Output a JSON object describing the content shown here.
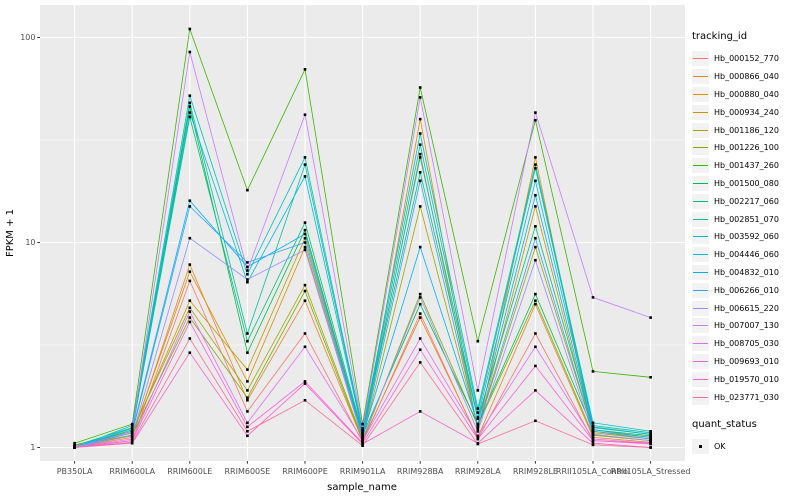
{
  "chart_data": {
    "type": "line",
    "title": "",
    "xlabel": "sample_name",
    "ylabel": "FPKM + 1",
    "y_scale": "log10",
    "y_ticks": [
      1,
      10,
      100
    ],
    "y_tick_labels": [
      "1",
      "10",
      "100"
    ],
    "y_minor": [
      3.1623,
      31.623
    ],
    "ylim": [
      0.85,
      144
    ],
    "grid": true,
    "legend_position": "right",
    "categories": [
      "PB350LA",
      "RRIM600LA",
      "RRIM600LE",
      "RRIM600SE",
      "RRIM600PE",
      "RRIM901LA",
      "RRIM928BA",
      "RRIM928LA",
      "RRIM928LE",
      "RRII105LA_Control",
      "RRII105LA_Stressed"
    ],
    "legend": {
      "tracking_title": "tracking_id",
      "quant_title": "quant_status",
      "quant_items": [
        {
          "label": "OK",
          "symbol": "black-square"
        }
      ]
    },
    "point_symbol": "filled-square",
    "point_color": "#000000",
    "panel_bg": "#ebebeb",
    "grid_color": "#ffffff",
    "key_bg": "#f2f2f2",
    "axis_text_color": "#4d4d4d",
    "tick_color": "#333333",
    "series": [
      {
        "name": "Hb_000152_770",
        "color": "#F8766D",
        "values": [
          1.0,
          1.08,
          6.5,
          1.5,
          3.6,
          1.06,
          4.5,
          1.1,
          3.6,
          1.08,
          1.05
        ]
      },
      {
        "name": "Hb_000866_040",
        "color": "#EA8331",
        "values": [
          1.0,
          1.12,
          7.8,
          1.7,
          5.2,
          1.08,
          4.3,
          1.12,
          5.0,
          1.12,
          1.06
        ]
      },
      {
        "name": "Hb_000880_040",
        "color": "#D89000",
        "values": [
          1.02,
          1.15,
          7.2,
          2.1,
          9.5,
          1.1,
          40,
          1.2,
          26,
          1.15,
          1.08
        ]
      },
      {
        "name": "Hb_000934_240",
        "color": "#C09B00",
        "values": [
          1.0,
          1.18,
          5.2,
          2.4,
          10.5,
          1.12,
          27,
          1.22,
          15,
          1.18,
          1.1
        ]
      },
      {
        "name": "Hb_001186_120",
        "color": "#A3A500",
        "values": [
          1.03,
          1.2,
          4.8,
          1.9,
          6.2,
          1.1,
          15,
          1.25,
          9.5,
          1.2,
          1.12
        ]
      },
      {
        "name": "Hb_001226_100",
        "color": "#7CAE00",
        "values": [
          1.0,
          1.15,
          4.3,
          1.75,
          5.8,
          1.08,
          5.6,
          1.28,
          5.2,
          1.15,
          1.08
        ]
      },
      {
        "name": "Hb_001437_260",
        "color": "#39B600",
        "values": [
          1.05,
          1.3,
          110,
          18,
          70,
          1.3,
          57,
          3.3,
          39.5,
          2.35,
          2.2
        ]
      },
      {
        "name": "Hb_001500_080",
        "color": "#00BB4E",
        "values": [
          1.0,
          1.2,
          46,
          2.9,
          11.5,
          1.15,
          5.0,
          1.3,
          5.6,
          1.22,
          1.14
        ]
      },
      {
        "name": "Hb_002217_060",
        "color": "#00BF7D",
        "values": [
          1.0,
          1.22,
          41,
          3.3,
          12.5,
          1.18,
          22,
          1.38,
          12,
          1.25,
          1.16
        ]
      },
      {
        "name": "Hb_002851_070",
        "color": "#00C1A3",
        "values": [
          1.02,
          1.25,
          48,
          3.6,
          24,
          1.2,
          30,
          1.48,
          23,
          1.28,
          1.18
        ]
      },
      {
        "name": "Hb_003592_060",
        "color": "#00BFC4",
        "values": [
          1.0,
          1.28,
          52,
          7.0,
          26,
          1.22,
          34,
          1.55,
          24,
          1.32,
          1.2
        ]
      },
      {
        "name": "Hb_004446_060",
        "color": "#00BAE0",
        "values": [
          1.0,
          1.24,
          43,
          6.4,
          21,
          1.18,
          26,
          1.4,
          20,
          1.26,
          1.16
        ]
      },
      {
        "name": "Hb_004832_010",
        "color": "#00B0F6",
        "values": [
          1.0,
          1.2,
          16,
          7.6,
          11,
          1.14,
          9.5,
          1.3,
          17,
          1.22,
          1.12
        ]
      },
      {
        "name": "Hb_006266_010",
        "color": "#35A2FF",
        "values": [
          1.0,
          1.18,
          15,
          8.0,
          10,
          1.12,
          20,
          1.26,
          10.5,
          1.2,
          1.1
        ]
      },
      {
        "name": "Hb_006615_220",
        "color": "#9590FF",
        "values": [
          1.0,
          1.14,
          10.5,
          6.6,
          9.2,
          1.1,
          5.4,
          1.2,
          8.2,
          1.16,
          1.08
        ]
      },
      {
        "name": "Hb_007007_130",
        "color": "#C77CFF",
        "values": [
          1.0,
          1.2,
          85,
          7.3,
          42,
          1.24,
          51,
          1.9,
          43,
          5.4,
          4.3
        ]
      },
      {
        "name": "Hb_008705_030",
        "color": "#E76BF3",
        "values": [
          1.0,
          1.1,
          4.6,
          1.32,
          3.1,
          1.08,
          3.4,
          1.14,
          3.1,
          1.1,
          1.05
        ]
      },
      {
        "name": "Hb_009693_010",
        "color": "#FA62DB",
        "values": [
          1.0,
          1.08,
          4.1,
          1.26,
          2.1,
          1.05,
          3.0,
          1.1,
          2.5,
          1.08,
          1.04
        ]
      },
      {
        "name": "Hb_019570_010",
        "color": "#FF61CC",
        "values": [
          1.0,
          1.05,
          2.9,
          1.14,
          2.05,
          1.04,
          1.5,
          1.05,
          1.9,
          1.05,
          1.0
        ]
      },
      {
        "name": "Hb_023771_030",
        "color": "#FF6A98",
        "values": [
          1.0,
          1.06,
          3.4,
          1.2,
          1.7,
          1.02,
          2.6,
          1.04,
          1.35,
          1.03,
          1.0
        ]
      }
    ]
  }
}
